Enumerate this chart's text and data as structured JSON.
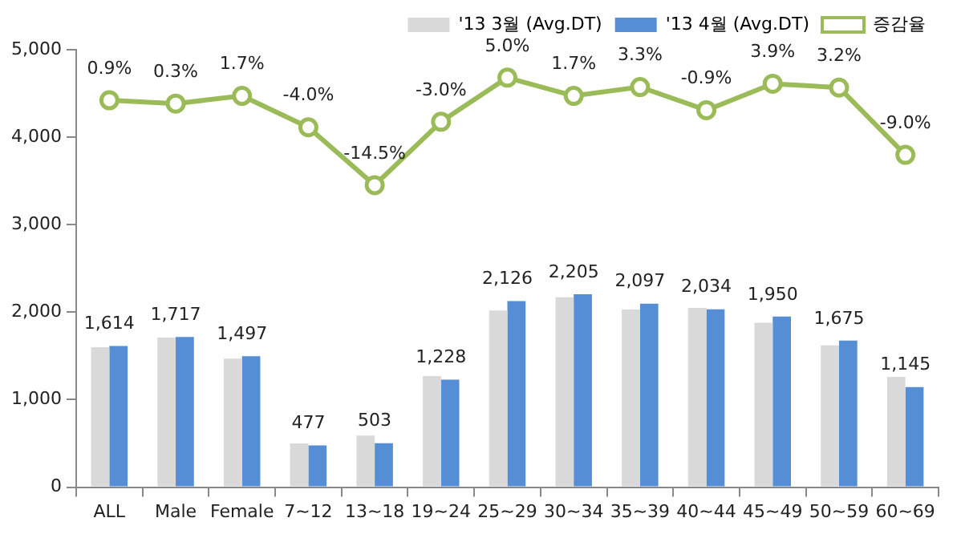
{
  "chart_data": {
    "type": "bar",
    "categories": [
      "ALL",
      "Male",
      "Female",
      "7~12",
      "13~18",
      "19~24",
      "25~29",
      "30~34",
      "35~39",
      "40~44",
      "45~49",
      "50~59",
      "60~69"
    ],
    "series": [
      {
        "name": "'13 3월 (Avg.DT)",
        "color": "#d9d9d9",
        "values": [
          1600,
          1710,
          1470,
          500,
          590,
          1270,
          2020,
          2170,
          2030,
          2050,
          1880,
          1620,
          1260
        ]
      },
      {
        "name": "'13 4월 (Avg.DT)",
        "color": "#558ed5",
        "values": [
          1614,
          1717,
          1497,
          477,
          503,
          1228,
          2126,
          2205,
          2097,
          2034,
          1950,
          1675,
          1145
        ],
        "value_labels": [
          "1,614",
          "1,717",
          "1,497",
          "477",
          "503",
          "1,228",
          "2,126",
          "2,205",
          "2,097",
          "2,034",
          "1,950",
          "1,675",
          "1,145"
        ]
      },
      {
        "name": "증감율",
        "type": "line",
        "axis": "y2",
        "color": "#9bbb59",
        "values": [
          0.9,
          0.3,
          1.7,
          -4.0,
          -14.5,
          -3.0,
          5.0,
          1.7,
          3.3,
          -0.9,
          3.9,
          3.2,
          -9.0
        ],
        "value_labels": [
          "0.9%",
          "0.3%",
          "1.7%",
          "-4.0%",
          "-14.5%",
          "-3.0%",
          "5.0%",
          "1.7%",
          "3.3%",
          "-0.9%",
          "3.9%",
          "3.2%",
          "-9.0%"
        ]
      }
    ],
    "ylim": [
      0,
      5000
    ],
    "yticks": [
      {
        "value": 0,
        "label": "0"
      },
      {
        "value": 1000,
        "label": "1,000"
      },
      {
        "value": 2000,
        "label": "2,000"
      },
      {
        "value": 3000,
        "label": "3,000"
      },
      {
        "value": 4000,
        "label": "4,000"
      },
      {
        "value": 5000,
        "label": "5,000"
      }
    ],
    "grid": false,
    "legend": "top right",
    "marker": "circle",
    "line_style": "solid"
  }
}
